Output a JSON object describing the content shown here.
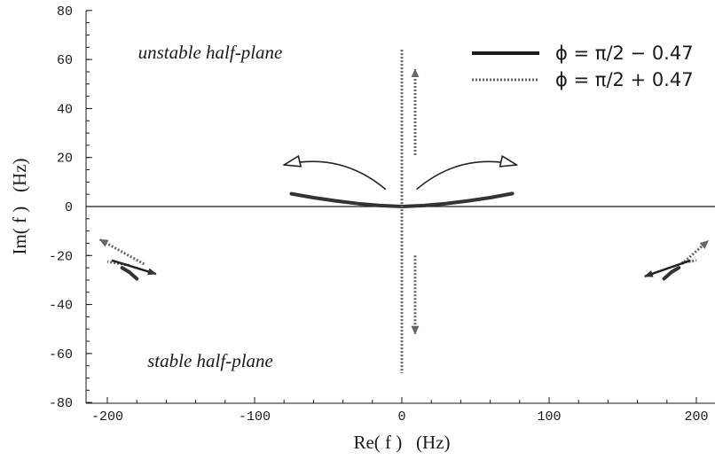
{
  "chart_data": {
    "type": "line",
    "xlabel": "Re( f )   (Hz)",
    "ylabel": "Im( f )   (Hz)",
    "xlim": [
      -215,
      215
    ],
    "ylim": [
      -80,
      80
    ],
    "xticks": [
      -200,
      -100,
      0,
      100,
      200
    ],
    "yticks": [
      -80,
      -60,
      -40,
      -20,
      0,
      20,
      40,
      60,
      80
    ],
    "grid": false,
    "legend_position": "top-right",
    "annotations": [
      {
        "text": "unstable half-plane",
        "x": -105,
        "y": 60
      },
      {
        "text": "stable half-plane",
        "x": -105,
        "y": -61
      }
    ],
    "series": [
      {
        "name": "ϕ = π/2 − 0.47",
        "style": "solid",
        "color": "#333333",
        "segments": [
          [
            [
              -75,
              5.2
            ],
            [
              -60,
              3.6
            ],
            [
              -45,
              2.3
            ],
            [
              -30,
              1.2
            ],
            [
              -15,
              0.4
            ],
            [
              0,
              0
            ]
          ],
          [
            [
              0,
              0
            ],
            [
              15,
              0.4
            ],
            [
              30,
              1.2
            ],
            [
              45,
              2.3
            ],
            [
              60,
              3.6
            ],
            [
              75,
              5.3
            ]
          ],
          [
            [
              -180,
              -29.5
            ],
            [
              -185,
              -26.8
            ],
            [
              -190,
              -25
            ]
          ],
          [
            [
              178,
              -29.5
            ],
            [
              183,
              -26.8
            ],
            [
              188,
              -25
            ]
          ]
        ]
      },
      {
        "name": "ϕ = π/2 + 0.47",
        "style": "dotted",
        "color": "#666666",
        "segments": [
          [
            [
              0,
              64
            ],
            [
              0,
              0
            ],
            [
              0,
              -68
            ]
          ],
          [
            [
              -185,
              -24
            ],
            [
              -200,
              -22.5
            ]
          ],
          [
            [
              190,
              -23
            ],
            [
              200,
              -22
            ]
          ]
        ]
      }
    ],
    "arrows": [
      {
        "from": [
          -11,
          7
        ],
        "to": [
          -80,
          17
        ],
        "style": "solid-open",
        "curve": 0.25
      },
      {
        "from": [
          10,
          7
        ],
        "to": [
          78,
          17
        ],
        "style": "solid-open",
        "curve": -0.25
      },
      {
        "from": [
          9,
          21
        ],
        "to": [
          9,
          56
        ],
        "style": "dotted"
      },
      {
        "from": [
          9,
          -20
        ],
        "to": [
          9,
          -52
        ],
        "style": "dotted"
      },
      {
        "from": [
          -175,
          -23.5
        ],
        "to": [
          -205,
          -13.5
        ],
        "style": "dotted"
      },
      {
        "from": [
          -197,
          -22
        ],
        "to": [
          -167,
          -27.5
        ],
        "style": "solid"
      },
      {
        "from": [
          190,
          -23.5
        ],
        "to": [
          208,
          -14
        ],
        "style": "dotted"
      },
      {
        "from": [
          196,
          -22
        ],
        "to": [
          165,
          -28.5
        ],
        "style": "solid"
      }
    ]
  }
}
